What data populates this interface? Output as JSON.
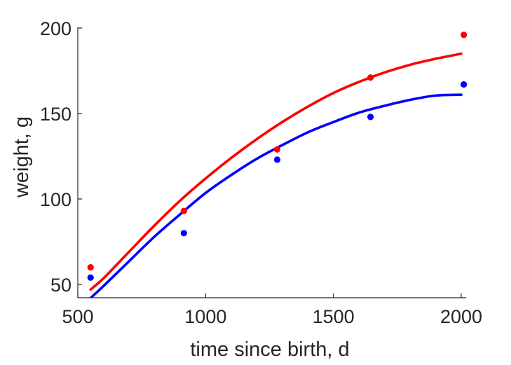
{
  "chart_data": {
    "type": "scatter",
    "title": "",
    "xlabel": "time since birth, d",
    "ylabel": "weight, g",
    "xlim": [
      500,
      2020
    ],
    "ylim": [
      43,
      210
    ],
    "xticks": [
      500,
      1000,
      1500,
      2000
    ],
    "yticks": [
      50,
      100,
      150,
      200
    ],
    "xtick_labels": [
      "500",
      "1000",
      "1500",
      "2000"
    ],
    "ytick_labels": [
      "50",
      "100",
      "150",
      "200"
    ],
    "grid": false,
    "legend": "none",
    "series": [
      {
        "color": "#ff0000",
        "kind": "points",
        "x": [
          550,
          915,
          1280,
          1645,
          2010
        ],
        "y": [
          60,
          93,
          129,
          171,
          196
        ]
      },
      {
        "color": "#0000ff",
        "kind": "points",
        "x": [
          550,
          915,
          1280,
          1645,
          2010
        ],
        "y": [
          54,
          80,
          123,
          148,
          167
        ]
      },
      {
        "color": "#ff0000",
        "kind": "line",
        "x": [
          550,
          600,
          700,
          800,
          900,
          1000,
          1100,
          1200,
          1300,
          1400,
          1500,
          1600,
          1700,
          1800,
          1900,
          2000
        ],
        "y": [
          47,
          53.5,
          69,
          84.5,
          99,
          112,
          124,
          135,
          145,
          154,
          162,
          168.5,
          174,
          178.5,
          182,
          185
        ]
      },
      {
        "color": "#0000ff",
        "kind": "line",
        "x": [
          550,
          600,
          700,
          800,
          900,
          1000,
          1100,
          1200,
          1300,
          1400,
          1500,
          1600,
          1700,
          1800,
          1900,
          2000
        ],
        "y": [
          42,
          49,
          63.5,
          78,
          91,
          103.5,
          114,
          123.5,
          131.5,
          139,
          145,
          150.5,
          154.5,
          158,
          160.5,
          161
        ]
      }
    ]
  }
}
